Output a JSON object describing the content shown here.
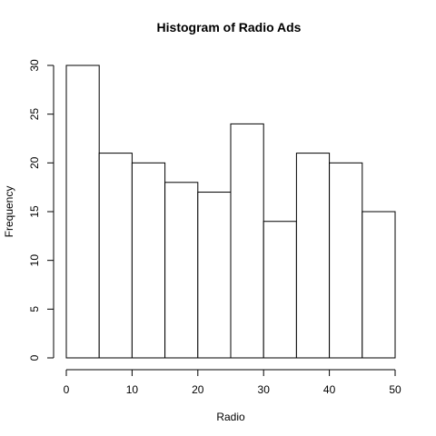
{
  "chart_data": {
    "type": "bar",
    "title": "Histogram of Radio Ads",
    "xlabel": "Radio",
    "ylabel": "Frequency",
    "bins": [
      {
        "start": 0,
        "end": 5,
        "value": 30
      },
      {
        "start": 5,
        "end": 10,
        "value": 21
      },
      {
        "start": 10,
        "end": 15,
        "value": 20
      },
      {
        "start": 15,
        "end": 20,
        "value": 18
      },
      {
        "start": 20,
        "end": 25,
        "value": 17
      },
      {
        "start": 25,
        "end": 30,
        "value": 24
      },
      {
        "start": 30,
        "end": 35,
        "value": 14
      },
      {
        "start": 35,
        "end": 40,
        "value": 21
      },
      {
        "start": 40,
        "end": 45,
        "value": 20
      },
      {
        "start": 45,
        "end": 50,
        "value": 15
      }
    ],
    "xlim": [
      0,
      50
    ],
    "ylim": [
      0,
      30
    ],
    "xticks": [
      0,
      10,
      20,
      30,
      40,
      50
    ],
    "yticks": [
      0,
      5,
      10,
      15,
      20,
      25,
      30
    ],
    "grid": false,
    "legend": "none",
    "bar_fill": "#ffffff",
    "bar_stroke": "#000000"
  }
}
